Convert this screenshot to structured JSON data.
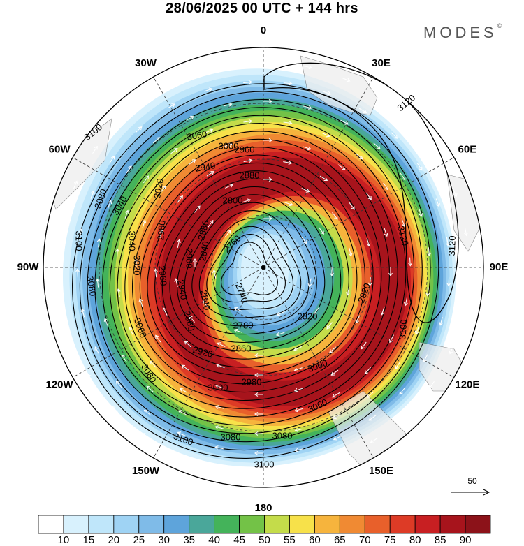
{
  "title": "28/06/2025  00 UTC  + 144 hrs",
  "brand": "MODES",
  "brand_mark": "©",
  "longitude_labels": [
    "0",
    "30E",
    "60E",
    "90E",
    "120E",
    "150E",
    "180",
    "150W",
    "120W",
    "90W",
    "60W",
    "30W"
  ],
  "contour_labels": [
    "3120",
    "3120",
    "3120",
    "3100",
    "3100",
    "3100",
    "3100",
    "3100",
    "3080",
    "3080",
    "3080",
    "3080",
    "3060",
    "3060",
    "3060",
    "3060",
    "3040",
    "3040",
    "3020",
    "3020",
    "3000",
    "3000",
    "3000",
    "2980",
    "2980",
    "2960",
    "2960",
    "2940",
    "2940",
    "2920",
    "2900",
    "2880",
    "2880",
    "2860",
    "2860",
    "2840",
    "2840",
    "2820",
    "2820",
    "2800",
    "2780",
    "2760",
    "2740"
  ],
  "vector_reference": "50",
  "colorbar": {
    "ticks": [
      "10",
      "15",
      "20",
      "25",
      "30",
      "35",
      "40",
      "45",
      "50",
      "55",
      "60",
      "65",
      "70",
      "75",
      "80",
      "85",
      "90"
    ],
    "colors": [
      "#ffffff",
      "#d8f1fd",
      "#bfe6fa",
      "#9fd3f4",
      "#7fbbe8",
      "#5ea4db",
      "#4aa79a",
      "#44b35a",
      "#73c247",
      "#c4dc4a",
      "#f7e14a",
      "#f6b43d",
      "#f08a33",
      "#e8602b",
      "#dd3b26",
      "#c81f22",
      "#a7141c",
      "#8c1219"
    ]
  }
}
